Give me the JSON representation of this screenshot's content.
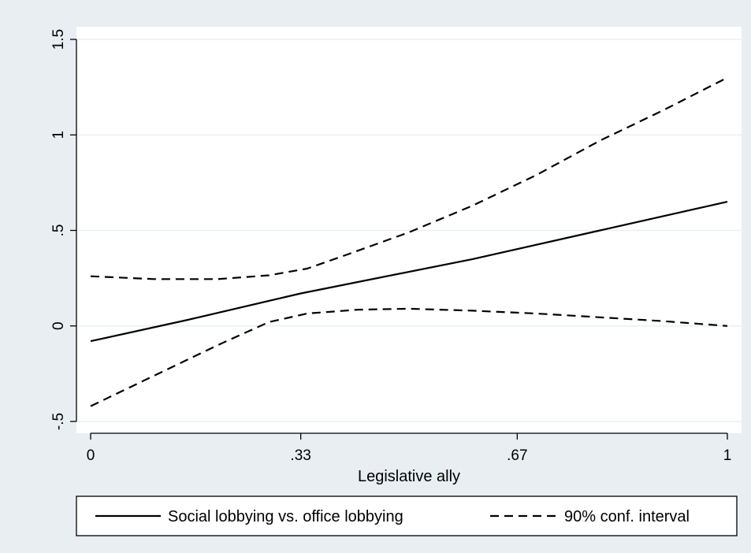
{
  "chart_data": {
    "type": "line",
    "title": "",
    "xlabel": "Legislative ally",
    "ylabel": "",
    "xlim": [
      0,
      1
    ],
    "ylim": [
      -0.5,
      1.5
    ],
    "x_ticks": [
      {
        "value": 0,
        "label": "0"
      },
      {
        "value": 0.33,
        "label": ".33"
      },
      {
        "value": 0.67,
        "label": ".67"
      },
      {
        "value": 1,
        "label": "1"
      }
    ],
    "y_ticks": [
      {
        "value": -0.5,
        "label": "-.5"
      },
      {
        "value": 0,
        "label": "0"
      },
      {
        "value": 0.5,
        "label": ".5"
      },
      {
        "value": 1,
        "label": "1"
      },
      {
        "value": 1.5,
        "label": "1.5"
      }
    ],
    "grid": true,
    "legend_position": "bottom",
    "series": [
      {
        "name": "Social lobbying vs. office lobbying",
        "style": "solid",
        "color": "#000000",
        "x": [
          0,
          0.15,
          0.33,
          0.6,
          0.8,
          1
        ],
        "y": [
          -0.08,
          0.03,
          0.17,
          0.35,
          0.5,
          0.65
        ]
      },
      {
        "name": "90% conf. interval",
        "style": "dashed",
        "color": "#000000",
        "x": [
          0,
          0.1,
          0.2,
          0.28,
          0.34,
          0.4,
          0.5,
          0.6,
          0.7,
          0.8,
          0.9,
          1
        ],
        "y": [
          0.26,
          0.245,
          0.245,
          0.265,
          0.3,
          0.37,
          0.49,
          0.63,
          0.79,
          0.97,
          1.13,
          1.3
        ]
      },
      {
        "name": "",
        "style": "dashed",
        "color": "#000000",
        "x": [
          0,
          0.1,
          0.2,
          0.28,
          0.34,
          0.42,
          0.5,
          0.6,
          0.7,
          0.8,
          0.9,
          1
        ],
        "y": [
          -0.42,
          -0.26,
          -0.1,
          0.02,
          0.065,
          0.085,
          0.09,
          0.08,
          0.065,
          0.045,
          0.025,
          0.0
        ]
      }
    ]
  },
  "colors": {
    "page_background": "#e8eef2",
    "plot_background": "#ffffff",
    "gridline": "#e9eff2",
    "ink": "#000000"
  }
}
